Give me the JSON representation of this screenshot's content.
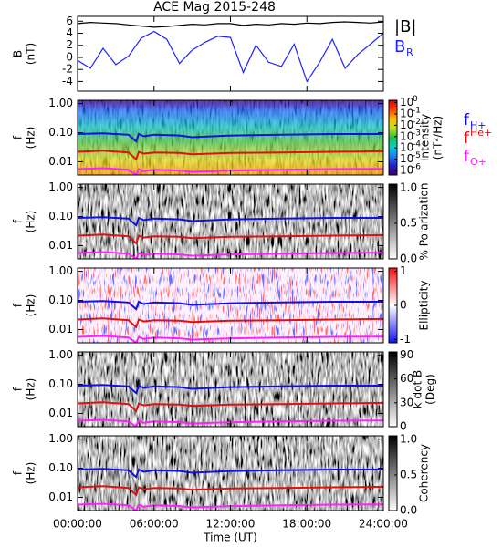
{
  "title": "ACE Mag 2015-248",
  "chart_data": [
    {
      "type": "line",
      "ylabel": [
        "B",
        "(nT)"
      ],
      "xlim": [
        0,
        24
      ],
      "ylim": [
        -5.6,
        6.8
      ],
      "yticks": [
        -4,
        -2,
        0,
        2,
        4,
        6
      ],
      "x": [
        0,
        1,
        2,
        3,
        4,
        5,
        6,
        7,
        8,
        9,
        10,
        11,
        12,
        13,
        14,
        15,
        16,
        17,
        18,
        19,
        20,
        21,
        22,
        23,
        24
      ],
      "series": [
        {
          "name": "|B|",
          "color": "#000000",
          "values": [
            5.6,
            5.8,
            5.7,
            5.6,
            5.4,
            5.2,
            5.0,
            5.1,
            5.3,
            5.5,
            5.4,
            5.6,
            5.6,
            5.3,
            5.5,
            5.4,
            5.6,
            5.5,
            5.7,
            5.6,
            5.8,
            5.9,
            5.8,
            5.7,
            5.9
          ]
        },
        {
          "name": "B",
          "name_sub": "R",
          "color": "#1e22ff",
          "values": [
            -0.5,
            -1.8,
            1.5,
            -1.2,
            0.2,
            3.2,
            4.3,
            3.0,
            -1.0,
            1.2,
            2.5,
            3.5,
            3.3,
            -2.5,
            2.0,
            -0.8,
            -1.5,
            2.2,
            -4.0,
            -0.8,
            3.0,
            -1.8,
            0.5,
            2.2,
            4.0
          ]
        }
      ]
    },
    {
      "type": "spectrogram",
      "colormap": "rainbow",
      "ylabel": [
        "f",
        "(Hz)"
      ],
      "log": true,
      "xlim": [
        0,
        24
      ],
      "ylim": [
        0.0035,
        1.3
      ],
      "yticks": [
        {
          "value": 1,
          "label": "1.00"
        },
        {
          "value": 0.1,
          "label": "0.10"
        },
        0.01
      ],
      "colorbar": {
        "label": [
          "Intensity",
          "(nT²/Hz)"
        ],
        "log": true,
        "lim": [
          4e-07,
          1.6
        ],
        "colors": [
          "#3a0070",
          "#2a1ad0",
          "#1080ff",
          "#00d0d0",
          "#20c040",
          "#c0e020",
          "#ffc000",
          "#ff4000",
          "#e00000"
        ],
        "ticks": [
          {
            "value": 1,
            "label": "10",
            "sup": "0"
          },
          {
            "value": 0.1,
            "label": "10",
            "sup": "-1"
          },
          {
            "value": 0.01,
            "label": "10",
            "sup": "-2"
          },
          {
            "value": 0.001,
            "label": "10",
            "sup": "-3"
          },
          {
            "value": 0.0001,
            "label": "10",
            "sup": "-4"
          },
          {
            "value": 1e-05,
            "label": "10",
            "sup": "-5"
          },
          {
            "value": 1e-06,
            "label": "10",
            "sup": "-6"
          }
        ]
      },
      "legend": true,
      "x": [
        0,
        2,
        4,
        4.6,
        4.8,
        5.2,
        6,
        8,
        9,
        12,
        16,
        20,
        24
      ],
      "series": [
        {
          "name": "f",
          "name_sub": "H+",
          "color": "#1010e0",
          "values": [
            0.09,
            0.095,
            0.085,
            0.05,
            0.09,
            0.075,
            0.085,
            0.08,
            0.07,
            0.08,
            0.085,
            0.09,
            0.09
          ]
        },
        {
          "name": "f",
          "name_sub": "He+",
          "color": "#e01010",
          "values": [
            0.022,
            0.024,
            0.021,
            0.012,
            0.022,
            0.019,
            0.021,
            0.02,
            0.018,
            0.02,
            0.021,
            0.022,
            0.023
          ]
        },
        {
          "name": "f",
          "name_sub": "O+",
          "color": "#ff20ff",
          "values": [
            0.0056,
            0.006,
            0.0053,
            0.0035,
            0.0056,
            0.0047,
            0.0053,
            0.005,
            0.0045,
            0.005,
            0.0053,
            0.0056,
            0.0057
          ]
        }
      ]
    },
    {
      "type": "spectrogram",
      "colormap": "gray",
      "ylabel": [
        "f",
        "(Hz)"
      ],
      "log": true,
      "xlim": [
        0,
        24
      ],
      "ylim": [
        0.0035,
        1.3
      ],
      "yticks": [
        {
          "value": 1,
          "label": "1.00"
        },
        {
          "value": 0.1,
          "label": "0.10"
        },
        0.01
      ],
      "colorbar": {
        "label": [
          "% Polarization"
        ],
        "lim": [
          0,
          1.05
        ],
        "colors": [
          "#ffffff",
          "#000000"
        ],
        "ticks": [
          {
            "value": 0,
            "label": "0.0"
          },
          {
            "value": 0.5,
            "label": "0.5"
          },
          {
            "value": 1,
            "label": "1.0"
          }
        ]
      },
      "x": [
        0,
        2,
        4,
        4.6,
        4.8,
        5.2,
        6,
        8,
        9,
        12,
        16,
        20,
        24
      ],
      "series": [
        {
          "color": "#1010e0",
          "values": [
            0.09,
            0.095,
            0.085,
            0.05,
            0.09,
            0.075,
            0.085,
            0.08,
            0.07,
            0.08,
            0.085,
            0.09,
            0.09
          ]
        },
        {
          "color": "#e01010",
          "values": [
            0.022,
            0.024,
            0.021,
            0.012,
            0.022,
            0.019,
            0.021,
            0.02,
            0.018,
            0.02,
            0.021,
            0.022,
            0.023
          ]
        },
        {
          "color": "#ff20ff",
          "values": [
            0.0056,
            0.006,
            0.0053,
            0.0035,
            0.0056,
            0.0047,
            0.0053,
            0.005,
            0.0045,
            0.005,
            0.0053,
            0.0056,
            0.0057
          ]
        }
      ]
    },
    {
      "type": "spectrogram",
      "colormap": "bwr",
      "ylabel": [
        "f",
        "(Hz)"
      ],
      "log": true,
      "xlim": [
        0,
        24
      ],
      "ylim": [
        0.0035,
        1.3
      ],
      "yticks": [
        {
          "value": 1,
          "label": "1.00"
        },
        {
          "value": 0.1,
          "label": "0.10"
        },
        0.01
      ],
      "colorbar": {
        "label": [
          "Ellipticity"
        ],
        "lim": [
          -1.1,
          1.1
        ],
        "colors": [
          "#1010ff",
          "#ffffff",
          "#ff1010"
        ],
        "ticks": [
          -1,
          0,
          1
        ]
      },
      "x": [
        0,
        2,
        4,
        4.6,
        4.8,
        5.2,
        6,
        8,
        9,
        12,
        16,
        20,
        24
      ],
      "series": [
        {
          "color": "#1010e0",
          "values": [
            0.09,
            0.095,
            0.085,
            0.05,
            0.09,
            0.075,
            0.085,
            0.08,
            0.07,
            0.08,
            0.085,
            0.09,
            0.09
          ]
        },
        {
          "color": "#e01010",
          "values": [
            0.022,
            0.024,
            0.021,
            0.012,
            0.022,
            0.019,
            0.021,
            0.02,
            0.018,
            0.02,
            0.021,
            0.022,
            0.023
          ]
        },
        {
          "color": "#ff20ff",
          "values": [
            0.0056,
            0.006,
            0.0053,
            0.0035,
            0.0056,
            0.0047,
            0.0053,
            0.005,
            0.0045,
            0.005,
            0.0053,
            0.0056,
            0.0057
          ]
        }
      ]
    },
    {
      "type": "spectrogram",
      "colormap": "gray",
      "ylabel": [
        "f",
        "(Hz)"
      ],
      "log": true,
      "xlim": [
        0,
        24
      ],
      "ylim": [
        0.0035,
        1.3
      ],
      "yticks": [
        {
          "value": 1,
          "label": "1.00"
        },
        {
          "value": 0.1,
          "label": "0.10"
        },
        0.01
      ],
      "colorbar": {
        "label": [
          "k dot B",
          "(Deg)"
        ],
        "lim": [
          0,
          94
        ],
        "colors": [
          "#ffffff",
          "#000000"
        ],
        "ticks": [
          0,
          30,
          60,
          90
        ]
      },
      "x": [
        0,
        2,
        4,
        4.6,
        4.8,
        5.2,
        6,
        8,
        9,
        12,
        16,
        20,
        24
      ],
      "series": [
        {
          "color": "#1010e0",
          "values": [
            0.09,
            0.095,
            0.085,
            0.05,
            0.09,
            0.075,
            0.085,
            0.08,
            0.07,
            0.08,
            0.085,
            0.09,
            0.09
          ]
        },
        {
          "color": "#e01010",
          "values": [
            0.022,
            0.024,
            0.021,
            0.012,
            0.022,
            0.019,
            0.021,
            0.02,
            0.018,
            0.02,
            0.021,
            0.022,
            0.023
          ]
        },
        {
          "color": "#ff20ff",
          "values": [
            0.0056,
            0.006,
            0.0053,
            0.0035,
            0.0056,
            0.0047,
            0.0053,
            0.005,
            0.0045,
            0.005,
            0.0053,
            0.0056,
            0.0057
          ]
        }
      ]
    },
    {
      "type": "spectrogram",
      "colormap": "gray",
      "ylabel": [
        "f",
        "(Hz)"
      ],
      "log": true,
      "xlim": [
        0,
        24
      ],
      "ylim": [
        0.0035,
        1.3
      ],
      "yticks": [
        {
          "value": 1,
          "label": "1.00"
        },
        {
          "value": 0.1,
          "label": "0.10"
        },
        0.01
      ],
      "colorbar": {
        "label": [
          "Coherency"
        ],
        "lim": [
          0,
          1.05
        ],
        "colors": [
          "#ffffff",
          "#000000"
        ],
        "ticks": [
          {
            "value": 0,
            "label": "0.0"
          },
          {
            "value": 0.5,
            "label": "0.5"
          },
          {
            "value": 1,
            "label": "1.0"
          }
        ]
      },
      "xlabel": "Time (UT)",
      "xticks": [
        {
          "value": 0,
          "label": "00:00:00"
        },
        {
          "value": 6,
          "label": "06:00:00"
        },
        {
          "value": 12,
          "label": "12:00:00"
        },
        {
          "value": 18,
          "label": "18:00:00"
        },
        {
          "value": 24,
          "label": "24:00:00"
        }
      ],
      "x": [
        0,
        2,
        4,
        4.6,
        4.8,
        5.2,
        6,
        8,
        9,
        12,
        16,
        20,
        24
      ],
      "series": [
        {
          "color": "#1010e0",
          "values": [
            0.09,
            0.095,
            0.085,
            0.05,
            0.09,
            0.075,
            0.085,
            0.08,
            0.07,
            0.08,
            0.085,
            0.09,
            0.09
          ]
        },
        {
          "color": "#e01010",
          "values": [
            0.022,
            0.024,
            0.021,
            0.012,
            0.022,
            0.019,
            0.021,
            0.02,
            0.018,
            0.02,
            0.021,
            0.022,
            0.023
          ]
        },
        {
          "color": "#ff20ff",
          "values": [
            0.0056,
            0.006,
            0.0053,
            0.0035,
            0.0056,
            0.0047,
            0.0053,
            0.005,
            0.0045,
            0.005,
            0.0053,
            0.0056,
            0.0057
          ]
        }
      ]
    }
  ]
}
